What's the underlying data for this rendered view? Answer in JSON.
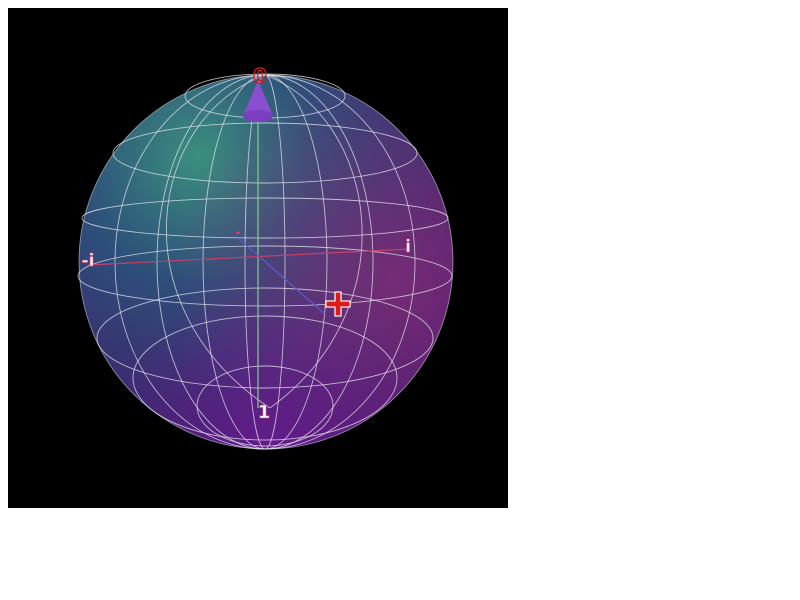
{
  "labels": {
    "top": "0",
    "bottom": "1",
    "left": "-i",
    "right": "i",
    "center_minus": "-",
    "plus_marker": "+"
  },
  "colors": {
    "background": "#000000",
    "page": "#ffffff",
    "grid": "#e8e8f0",
    "z_axis": "#7bd38a",
    "x_axis": "#5a5ad0",
    "y_axis": "#c8406a",
    "state_vector": "#8a4fd0",
    "label_white": "#ffffff",
    "label_magenta": "#e0407a",
    "label_red": "#e01818",
    "sphere_top_left": "#2f8a7c",
    "sphere_right": "#7a2a7a",
    "sphere_bottom": "#4a1a7a"
  },
  "icons": {
    "state_arrow": "cone-arrow-icon",
    "plus_marker": "plus-marker-icon"
  }
}
